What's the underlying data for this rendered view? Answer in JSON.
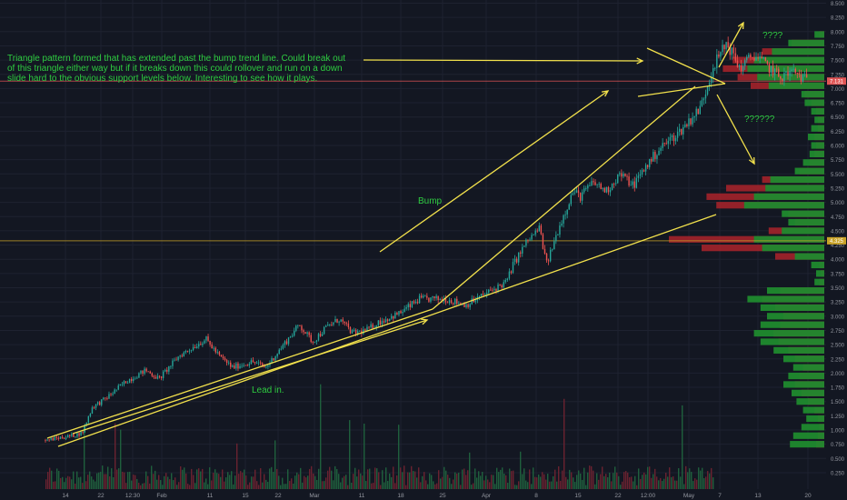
{
  "chart_data": {
    "type": "candlestick",
    "x_ticks": [
      "14",
      "22",
      "12:30",
      "Feb",
      "11",
      "15",
      "22",
      "Mar",
      "11",
      "18",
      "25",
      "Apr",
      "8",
      "15",
      "22",
      "12:00",
      "May",
      "7",
      "13",
      "20"
    ],
    "y_ticks": [
      "0.250",
      "0.500",
      "0.750",
      "1.000",
      "1.250",
      "1.500",
      "1.750",
      "2.000",
      "2.250",
      "2.500",
      "2.750",
      "3.000",
      "3.250",
      "3.500",
      "3.750",
      "4.000",
      "4.250",
      "4.500",
      "4.750",
      "5.000",
      "5.250",
      "5.500",
      "5.750",
      "6.000",
      "6.250",
      "6.500",
      "6.750",
      "7.000",
      "7.250",
      "7.500",
      "7.750",
      "8.000",
      "8.250",
      "8.500"
    ],
    "ylim": [
      0.15,
      8.65
    ],
    "price_labels": [
      {
        "text": "7.131",
        "value": 7.131,
        "color": "#e05555"
      },
      {
        "text": "4.325",
        "value": 4.325,
        "color": "#c9a227"
      }
    ],
    "horizontal_lines": [
      {
        "value": 7.131,
        "color": "#e05555"
      },
      {
        "value": 4.325,
        "color": "#c9a227"
      }
    ],
    "price_path": [
      [
        0.0,
        0.82
      ],
      [
        0.02,
        0.86
      ],
      [
        0.04,
        0.9
      ],
      [
        0.055,
        0.95
      ],
      [
        0.07,
        1.4
      ],
      [
        0.09,
        1.55
      ],
      [
        0.12,
        1.85
      ],
      [
        0.15,
        2.05
      ],
      [
        0.17,
        1.9
      ],
      [
        0.2,
        2.3
      ],
      [
        0.22,
        2.45
      ],
      [
        0.24,
        2.6
      ],
      [
        0.26,
        2.3
      ],
      [
        0.28,
        2.1
      ],
      [
        0.31,
        2.2
      ],
      [
        0.33,
        2.1
      ],
      [
        0.36,
        2.55
      ],
      [
        0.38,
        2.85
      ],
      [
        0.4,
        2.55
      ],
      [
        0.42,
        2.8
      ],
      [
        0.44,
        2.95
      ],
      [
        0.46,
        2.7
      ],
      [
        0.48,
        2.75
      ],
      [
        0.5,
        2.9
      ],
      [
        0.53,
        3.05
      ],
      [
        0.56,
        3.3
      ],
      [
        0.6,
        3.3
      ],
      [
        0.63,
        3.2
      ],
      [
        0.66,
        3.4
      ],
      [
        0.69,
        3.6
      ],
      [
        0.7,
        3.9
      ],
      [
        0.72,
        4.3
      ],
      [
        0.74,
        4.55
      ],
      [
        0.75,
        3.9
      ],
      [
        0.76,
        4.25
      ],
      [
        0.77,
        4.6
      ],
      [
        0.78,
        4.9
      ],
      [
        0.79,
        5.2
      ],
      [
        0.8,
        5.1
      ],
      [
        0.82,
        5.35
      ],
      [
        0.84,
        5.2
      ],
      [
        0.86,
        5.5
      ],
      [
        0.88,
        5.3
      ],
      [
        0.9,
        5.65
      ],
      [
        0.92,
        5.95
      ],
      [
        0.95,
        6.25
      ],
      [
        0.98,
        6.65
      ],
      [
        1.0,
        7.4
      ],
      [
        1.02,
        7.8
      ],
      [
        1.04,
        7.35
      ],
      [
        1.06,
        7.6
      ],
      [
        1.08,
        7.4
      ],
      [
        1.1,
        7.2
      ],
      [
        1.12,
        7.3
      ],
      [
        1.14,
        7.13
      ]
    ],
    "volume_profile": [
      {
        "price": 0.75,
        "buy": 0.21,
        "sell": 0.05
      },
      {
        "price": 0.9,
        "buy": 0.19,
        "sell": 0.04
      },
      {
        "price": 1.05,
        "buy": 0.14,
        "sell": 0.03
      },
      {
        "price": 1.2,
        "buy": 0.11,
        "sell": 0.04
      },
      {
        "price": 1.35,
        "buy": 0.13,
        "sell": 0.06
      },
      {
        "price": 1.5,
        "buy": 0.17,
        "sell": 0.1
      },
      {
        "price": 1.65,
        "buy": 0.2,
        "sell": 0.14
      },
      {
        "price": 1.8,
        "buy": 0.25,
        "sell": 0.18
      },
      {
        "price": 1.95,
        "buy": 0.22,
        "sell": 0.15
      },
      {
        "price": 2.1,
        "buy": 0.19,
        "sell": 0.13
      },
      {
        "price": 2.25,
        "buy": 0.25,
        "sell": 0.18
      },
      {
        "price": 2.4,
        "buy": 0.31,
        "sell": 0.22
      },
      {
        "price": 2.55,
        "buy": 0.39,
        "sell": 0.28
      },
      {
        "price": 2.7,
        "buy": 0.43,
        "sell": 0.31
      },
      {
        "price": 2.85,
        "buy": 0.39,
        "sell": 0.27
      },
      {
        "price": 3.0,
        "buy": 0.35,
        "sell": 0.25
      },
      {
        "price": 3.15,
        "buy": 0.39,
        "sell": 0.3
      },
      {
        "price": 3.3,
        "buy": 0.47,
        "sell": 0.38
      },
      {
        "price": 3.45,
        "buy": 0.35,
        "sell": 0.27
      },
      {
        "price": 3.6,
        "buy": 0.06,
        "sell": 0.03
      },
      {
        "price": 3.75,
        "buy": 0.05,
        "sell": 0.02
      },
      {
        "price": 3.9,
        "buy": 0.08,
        "sell": 0.03
      },
      {
        "price": 4.05,
        "buy": 0.18,
        "sell": 0.3
      },
      {
        "price": 4.2,
        "buy": 0.38,
        "sell": 0.75
      },
      {
        "price": 4.35,
        "buy": 0.43,
        "sell": 0.95
      },
      {
        "price": 4.5,
        "buy": 0.26,
        "sell": 0.34
      },
      {
        "price": 4.65,
        "buy": 0.22,
        "sell": 0.18
      },
      {
        "price": 4.8,
        "buy": 0.26,
        "sell": 0.22
      },
      {
        "price": 4.95,
        "buy": 0.49,
        "sell": 0.66
      },
      {
        "price": 5.1,
        "buy": 0.43,
        "sell": 0.72
      },
      {
        "price": 5.25,
        "buy": 0.36,
        "sell": 0.6
      },
      {
        "price": 5.4,
        "buy": 0.33,
        "sell": 0.38
      },
      {
        "price": 5.55,
        "buy": 0.18,
        "sell": 0.15
      },
      {
        "price": 5.7,
        "buy": 0.13,
        "sell": 0.09
      },
      {
        "price": 5.85,
        "buy": 0.09,
        "sell": 0.06
      },
      {
        "price": 6.0,
        "buy": 0.08,
        "sell": 0.05
      },
      {
        "price": 6.15,
        "buy": 0.1,
        "sell": 0.06
      },
      {
        "price": 6.3,
        "buy": 0.08,
        "sell": 0.04
      },
      {
        "price": 6.45,
        "buy": 0.06,
        "sell": 0.04
      },
      {
        "price": 6.6,
        "buy": 0.08,
        "sell": 0.05
      },
      {
        "price": 6.75,
        "buy": 0.12,
        "sell": 0.08
      },
      {
        "price": 6.9,
        "buy": 0.14,
        "sell": 0.12
      },
      {
        "price": 7.05,
        "buy": 0.34,
        "sell": 0.45
      },
      {
        "price": 7.2,
        "buy": 0.41,
        "sell": 0.53
      },
      {
        "price": 7.35,
        "buy": 0.47,
        "sell": 0.62
      },
      {
        "price": 7.5,
        "buy": 0.43,
        "sell": 0.56
      },
      {
        "price": 7.65,
        "buy": 0.32,
        "sell": 0.38
      },
      {
        "price": 7.8,
        "buy": 0.22,
        "sell": 0.2
      },
      {
        "price": 7.95,
        "buy": 0.06,
        "sell": 0.03
      }
    ],
    "annotations": [
      {
        "key": "main",
        "text": "Triangle pattern formed that has extended past the bump trend line. Could break out of this triangle either way but if it breaks down this could rollover and run on a down slide hard to the obvious support levels below. Interesting to see how it plays."
      },
      {
        "key": "up",
        "text": "????"
      },
      {
        "key": "down",
        "text": "??????"
      },
      {
        "key": "bump",
        "text": "Bump"
      },
      {
        "key": "lead",
        "text": "Lead in."
      }
    ],
    "colors": {
      "background": "#131722",
      "up": "#26a69a",
      "down": "#ef5350",
      "profile_buy": "#1f8a2e",
      "profile_sell": "#a3222a",
      "drawing": "#f2e14c",
      "note": "#2ecc40"
    }
  },
  "annotations": {
    "main": "Triangle pattern formed that has extended past the bump trend line. Could break out of this triangle either way but if it breaks down this could rollover and run on a down slide hard to the obvious support levels below. Interesting to see how it plays.",
    "up": "????",
    "down": "??????",
    "bump": "Bump",
    "lead": "Lead in."
  }
}
